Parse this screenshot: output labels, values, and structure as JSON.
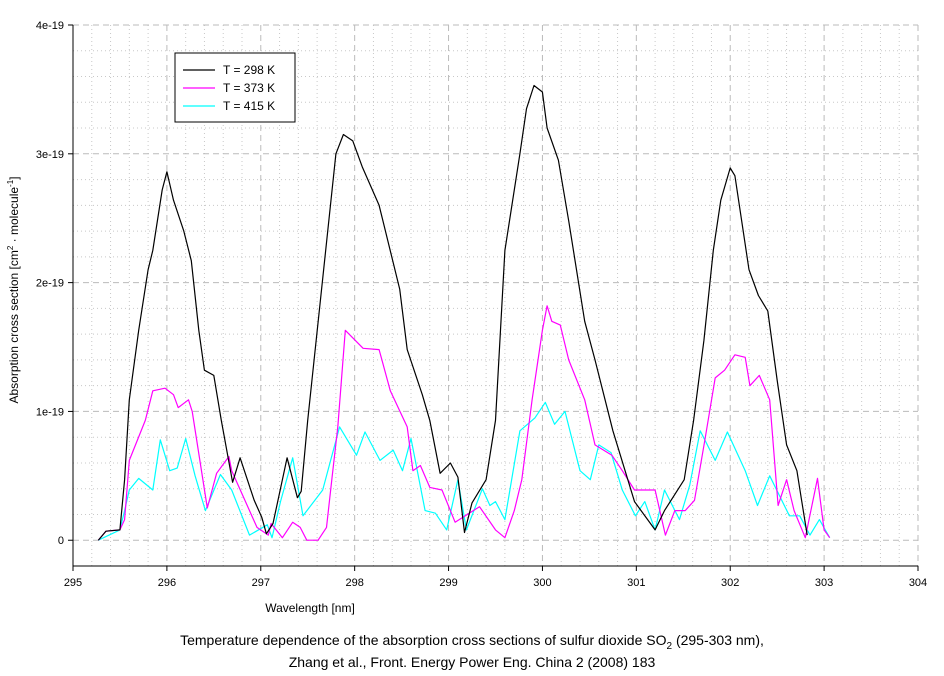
{
  "chart_data": {
    "type": "line",
    "xlabel": "Wavelength [nm]",
    "ylabel": {
      "pre": "Absorption cross section [cm",
      "sup1": "2",
      "mid": " · molecule",
      "sup2": "-1",
      "post": "]"
    },
    "xlim": [
      295,
      304
    ],
    "ylim": [
      -2e-20,
      4e-19
    ],
    "xticks": [
      "295",
      "296",
      "297",
      "298",
      "299",
      "300",
      "301",
      "302",
      "303",
      "304"
    ],
    "yticks": [
      {
        "v": 0,
        "label": "0"
      },
      {
        "v": 1e-19,
        "label": "1e-19"
      },
      {
        "v": 2e-19,
        "label": "2e-19"
      },
      {
        "v": 3e-19,
        "label": "3e-19"
      },
      {
        "v": 4e-19,
        "label": "4e-19"
      }
    ],
    "grid": true,
    "legend_position": "top-left",
    "series": [
      {
        "name": "T = 298 K",
        "color": "#000000",
        "x": [
          295.27,
          295.35,
          295.5,
          295.55,
          295.6,
          295.7,
          295.8,
          295.85,
          295.95,
          296.0,
          296.07,
          296.18,
          296.26,
          296.34,
          296.4,
          296.5,
          296.58,
          296.7,
          296.78,
          296.93,
          297.01,
          297.06,
          297.13,
          297.28,
          297.39,
          297.43,
          297.5,
          297.8,
          297.88,
          297.98,
          298.08,
          298.26,
          298.48,
          298.56,
          298.72,
          298.8,
          298.91,
          299.02,
          299.1,
          299.17,
          299.25,
          299.3,
          299.4,
          299.5,
          299.6,
          299.76,
          299.83,
          299.91,
          300.0,
          300.05,
          300.17,
          300.28,
          300.45,
          300.56,
          300.75,
          300.98,
          301.2,
          301.3,
          301.51,
          301.61,
          301.72,
          301.82,
          301.9,
          302.0,
          302.05,
          302.2,
          302.3,
          302.4,
          302.5,
          302.6,
          302.71,
          302.76,
          302.82
        ],
        "y": [
          0,
          7e-21,
          8e-21,
          4.7e-20,
          1.09e-19,
          1.63e-19,
          2.1e-19,
          2.25e-19,
          2.72e-19,
          2.86e-19,
          2.64e-19,
          2.4e-19,
          2.17e-19,
          1.63e-19,
          1.32e-19,
          1.28e-19,
          9.3e-20,
          4.5e-20,
          6.4e-20,
          3.1e-20,
          1.8e-20,
          5e-21,
          1.3e-20,
          6.4e-20,
          3.3e-20,
          3.8e-20,
          9.3e-20,
          3e-19,
          3.15e-19,
          3.1e-19,
          2.9e-19,
          2.6e-19,
          1.95e-19,
          1.48e-19,
          1.13e-19,
          9.3e-20,
          5.2e-20,
          6e-20,
          4.9e-20,
          6e-21,
          2.9e-20,
          3.5e-20,
          4.7e-20,
          9.3e-20,
          2.25e-19,
          3e-19,
          3.35e-19,
          3.53e-19,
          3.48e-19,
          3.2e-19,
          2.95e-19,
          2.48e-19,
          1.7e-19,
          1.4e-19,
          8.5e-20,
          3e-20,
          8e-21,
          2.3e-20,
          4.7e-20,
          9.3e-20,
          1.55e-19,
          2.25e-19,
          2.64e-19,
          2.89e-19,
          2.83e-19,
          2.1e-19,
          1.9e-19,
          1.78e-19,
          1.24e-19,
          7.4e-20,
          5.4e-20,
          3.1e-20,
          4e-21
        ]
      },
      {
        "name": "T = 373 K",
        "color": "#ff00ff",
        "x": [
          295.27,
          295.35,
          295.5,
          295.55,
          295.6,
          295.77,
          295.85,
          295.98,
          296.07,
          296.12,
          296.23,
          296.27,
          296.43,
          296.53,
          296.66,
          296.69,
          296.96,
          297.08,
          297.11,
          297.23,
          297.34,
          297.42,
          297.49,
          297.61,
          297.7,
          297.76,
          297.82,
          297.9,
          298.09,
          298.26,
          298.38,
          298.56,
          298.62,
          298.7,
          298.8,
          298.93,
          299.07,
          299.33,
          299.5,
          299.6,
          299.7,
          299.78,
          299.89,
          300.0,
          300.05,
          300.1,
          300.19,
          300.28,
          300.45,
          300.56,
          300.74,
          300.85,
          300.98,
          301.2,
          301.31,
          301.41,
          301.52,
          301.62,
          301.73,
          301.84,
          301.94,
          302.05,
          302.16,
          302.21,
          302.31,
          302.42,
          302.51,
          302.6,
          302.68,
          302.8,
          302.93,
          303.0,
          303.06
        ],
        "y": [
          0,
          7e-21,
          8e-21,
          1.6e-20,
          6.2e-20,
          9.3e-20,
          1.16e-19,
          1.18e-19,
          1.13e-19,
          1.03e-19,
          1.09e-19,
          1e-19,
          2.5e-20,
          5.2e-20,
          6.5e-20,
          5.4e-20,
          1e-20,
          4e-21,
          1.3e-20,
          2e-21,
          1.4e-20,
          1e-20,
          0,
          0,
          1e-20,
          4.9e-20,
          8.8e-20,
          1.63e-19,
          1.49e-19,
          1.48e-19,
          1.16e-19,
          8.8e-20,
          5.4e-20,
          5.8e-20,
          4.1e-20,
          3.9e-20,
          1.4e-20,
          2.6e-20,
          8e-21,
          2e-21,
          2.3e-20,
          4.7e-20,
          1.09e-19,
          1.63e-19,
          1.82e-19,
          1.7e-19,
          1.67e-19,
          1.4e-19,
          1.09e-19,
          7.4e-20,
          6.6e-20,
          5.4e-20,
          3.9e-20,
          3.9e-20,
          4e-21,
          2.3e-20,
          2.3e-20,
          3.1e-20,
          7.8e-20,
          1.26e-19,
          1.32e-19,
          1.44e-19,
          1.42e-19,
          1.2e-19,
          1.28e-19,
          1.09e-19,
          2.7e-20,
          4.7e-20,
          2.3e-20,
          2e-21,
          4.8e-20,
          8e-21,
          2e-21
        ]
      },
      {
        "name": "T = 415 K",
        "color": "#00ffff",
        "x": [
          295.27,
          295.5,
          295.55,
          295.6,
          295.7,
          295.85,
          295.93,
          296.03,
          296.11,
          296.2,
          296.3,
          296.41,
          296.57,
          296.69,
          296.88,
          297.07,
          297.12,
          297.21,
          297.34,
          297.45,
          297.66,
          297.84,
          298.02,
          298.11,
          298.27,
          298.41,
          298.51,
          298.6,
          298.75,
          298.86,
          298.98,
          299.1,
          299.19,
          299.36,
          299.44,
          299.5,
          299.6,
          299.76,
          299.92,
          300.03,
          300.13,
          300.24,
          300.4,
          300.51,
          300.6,
          300.73,
          300.85,
          300.99,
          301.09,
          301.2,
          301.3,
          301.46,
          301.57,
          301.68,
          301.84,
          301.97,
          302.16,
          302.29,
          302.42,
          302.63,
          302.74,
          302.85,
          302.95,
          303.06
        ],
        "y": [
          0,
          8e-21,
          2.3e-20,
          3.9e-20,
          4.8e-20,
          3.9e-20,
          7.8e-20,
          5.4e-20,
          5.6e-20,
          7.9e-20,
          5e-20,
          2.3e-20,
          5.1e-20,
          3.9e-20,
          4e-21,
          1.2e-20,
          2e-21,
          3e-20,
          6.4e-20,
          1.9e-20,
          3.9e-20,
          8.8e-20,
          6.6e-20,
          8.4e-20,
          6.2e-20,
          7e-20,
          5.4e-20,
          7.9e-20,
          2.3e-20,
          2.1e-20,
          8e-21,
          4.7e-20,
          8e-21,
          4e-20,
          2.7e-20,
          3e-20,
          1.6e-20,
          8.5e-20,
          9.5e-20,
          1.07e-19,
          9e-20,
          1e-19,
          5.4e-20,
          4.7e-20,
          7.4e-20,
          6.8e-20,
          3.9e-20,
          1.9e-20,
          3e-20,
          8e-21,
          3.9e-20,
          1.6e-20,
          4.3e-20,
          8.5e-20,
          6.2e-20,
          8.4e-20,
          5.4e-20,
          2.7e-20,
          5e-20,
          1.9e-20,
          1.9e-20,
          4e-21,
          1.6e-20,
          2e-21
        ]
      }
    ]
  },
  "caption": {
    "line1_pre": "Temperature dependence of the absorption cross sections of sulfur dioxide SO",
    "line1_sub": "2",
    "line1_post": " (295-303 nm),",
    "line2": "Zhang et al., Front. Energy Power Eng. China 2 (2008) 183"
  }
}
